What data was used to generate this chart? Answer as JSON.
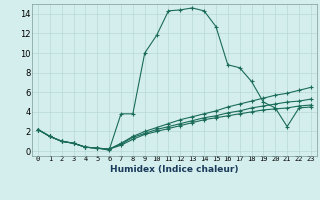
{
  "xlabel": "Humidex (Indice chaleur)",
  "bg_color": "#d4eeed",
  "grid_color": "#b8d8d4",
  "line_color": "#1a6b5a",
  "spine_color": "#7a9a98",
  "xlim": [
    -0.5,
    23.5
  ],
  "ylim": [
    -0.5,
    15.0
  ],
  "xticks": [
    0,
    1,
    2,
    3,
    4,
    5,
    6,
    7,
    8,
    9,
    10,
    11,
    12,
    13,
    14,
    15,
    16,
    17,
    18,
    19,
    20,
    21,
    22,
    23
  ],
  "yticks": [
    0,
    2,
    4,
    6,
    8,
    10,
    12,
    14
  ],
  "series": [
    [
      2.2,
      1.5,
      1.0,
      0.8,
      0.4,
      0.3,
      0.1,
      3.8,
      3.8,
      10.0,
      11.8,
      14.3,
      14.4,
      14.6,
      14.3,
      12.7,
      8.8,
      8.5,
      7.1,
      5.0,
      4.4,
      2.5,
      4.4,
      4.5
    ],
    [
      2.2,
      1.5,
      1.0,
      0.8,
      0.4,
      0.3,
      0.2,
      0.8,
      1.5,
      2.0,
      2.4,
      2.8,
      3.2,
      3.5,
      3.8,
      4.1,
      4.5,
      4.8,
      5.1,
      5.4,
      5.7,
      5.9,
      6.2,
      6.5
    ],
    [
      2.2,
      1.5,
      1.0,
      0.8,
      0.4,
      0.3,
      0.2,
      0.7,
      1.4,
      1.8,
      2.2,
      2.5,
      2.8,
      3.1,
      3.4,
      3.6,
      3.9,
      4.1,
      4.4,
      4.6,
      4.8,
      5.0,
      5.1,
      5.3
    ],
    [
      2.2,
      1.5,
      1.0,
      0.8,
      0.4,
      0.3,
      0.2,
      0.6,
      1.2,
      1.7,
      2.0,
      2.3,
      2.6,
      2.9,
      3.2,
      3.4,
      3.6,
      3.8,
      4.0,
      4.2,
      4.3,
      4.4,
      4.6,
      4.7
    ]
  ]
}
